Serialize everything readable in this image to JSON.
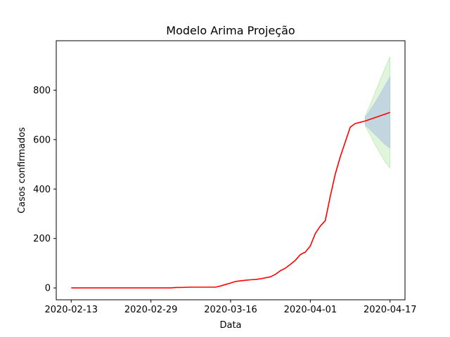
{
  "chart_data": {
    "type": "line",
    "title": "Modelo Arima Projeção",
    "xlabel": "Data",
    "ylabel": "Casos confirmados",
    "xlim": [
      "2020-02-10",
      "2020-04-20"
    ],
    "ylim": [
      -48,
      1000
    ],
    "grid": false,
    "x_ticks": [
      "2020-02-13",
      "2020-02-29",
      "2020-03-16",
      "2020-04-01",
      "2020-04-17"
    ],
    "y_ticks": [
      0,
      200,
      400,
      600,
      800
    ],
    "colors": {
      "observed": "#ff0000",
      "ci_inner": "#b0c4de",
      "ci_outer": "#98df8a"
    },
    "series": [
      {
        "role": "observed",
        "x": [
          "2020-02-13",
          "2020-02-20",
          "2020-02-27",
          "2020-03-04",
          "2020-03-05",
          "2020-03-06",
          "2020-03-08",
          "2020-03-10",
          "2020-03-12",
          "2020-03-13",
          "2020-03-14",
          "2020-03-15",
          "2020-03-16",
          "2020-03-17",
          "2020-03-18",
          "2020-03-19",
          "2020-03-20",
          "2020-03-21",
          "2020-03-22",
          "2020-03-23",
          "2020-03-24",
          "2020-03-25",
          "2020-03-26",
          "2020-03-27",
          "2020-03-28",
          "2020-03-29",
          "2020-03-30",
          "2020-03-31",
          "2020-04-01",
          "2020-04-02",
          "2020-04-03",
          "2020-04-04",
          "2020-04-05",
          "2020-04-06",
          "2020-04-07",
          "2020-04-08",
          "2020-04-09",
          "2020-04-10",
          "2020-04-11",
          "2020-04-12"
        ],
        "y": [
          0,
          0,
          0,
          0,
          2,
          2,
          3,
          3,
          3,
          3,
          8,
          14,
          20,
          26,
          29,
          31,
          33,
          34,
          37,
          41,
          45,
          55,
          70,
          80,
          95,
          112,
          135,
          145,
          170,
          220,
          250,
          272,
          370,
          460,
          530,
          590,
          650,
          665,
          670,
          675
        ]
      },
      {
        "role": "forecast",
        "x": [
          "2020-04-12",
          "2020-04-17"
        ],
        "y": [
          675,
          710
        ]
      }
    ],
    "confidence_bands": [
      {
        "level": "inner",
        "x": [
          "2020-04-12",
          "2020-04-13",
          "2020-04-14",
          "2020-04-15",
          "2020-04-16",
          "2020-04-17"
        ],
        "lower": [
          660,
          640,
          620,
          600,
          580,
          565
        ],
        "upper": [
          690,
          720,
          750,
          785,
          820,
          855
        ]
      },
      {
        "level": "outer",
        "x": [
          "2020-04-12",
          "2020-04-13",
          "2020-04-14",
          "2020-04-15",
          "2020-04-16",
          "2020-04-17"
        ],
        "lower": [
          655,
          620,
          580,
          545,
          510,
          485
        ],
        "upper": [
          695,
          740,
          790,
          840,
          890,
          935
        ]
      }
    ]
  }
}
